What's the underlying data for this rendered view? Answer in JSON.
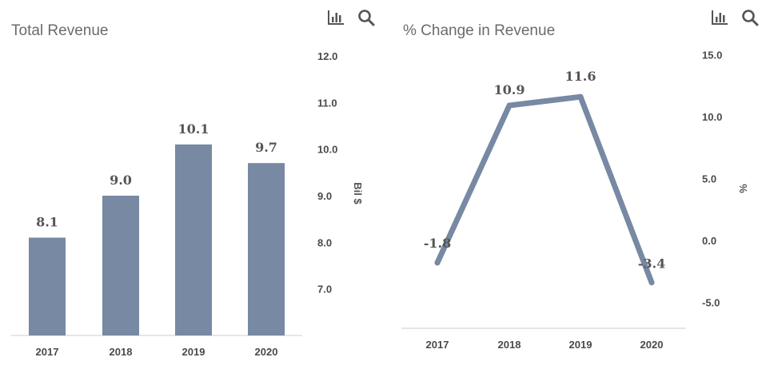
{
  "colors": {
    "series": "#7789a3",
    "axis": "#cccccc",
    "text": "#555555",
    "icon": "#555555"
  },
  "charts": [
    {
      "toolbar": {
        "icons": [
          "bar-chart-icon",
          "search-icon"
        ]
      },
      "chart_data": {
        "type": "bar",
        "title": "Total Revenue",
        "categories": [
          "2017",
          "2018",
          "2019",
          "2020"
        ],
        "values": [
          8.1,
          9.0,
          10.1,
          9.7
        ],
        "data_labels": [
          "8.1",
          "9.0",
          "10.1",
          "9.7"
        ],
        "y_ticks": [
          "12.0",
          "11.0",
          "10.0",
          "9.0",
          "8.0",
          "7.0"
        ],
        "ylim": [
          6.0,
          12.0
        ],
        "yaxis_position": "right",
        "ylabel": "Bil $",
        "grid": false,
        "legend": "none"
      }
    },
    {
      "toolbar": {
        "icons": [
          "bar-chart-icon",
          "search-icon"
        ]
      },
      "chart_data": {
        "type": "line",
        "title": "% Change in Revenue",
        "categories": [
          "2017",
          "2018",
          "2019",
          "2020"
        ],
        "values": [
          -1.8,
          10.9,
          11.6,
          -3.4
        ],
        "data_labels": [
          "-1.8",
          "10.9",
          "11.6",
          "-3.4"
        ],
        "y_ticks": [
          "15.0",
          "10.0",
          "5.0",
          "0.0",
          "-5.0"
        ],
        "ylim": [
          -5.0,
          15.0
        ],
        "yaxis_position": "right",
        "ylabel": "%",
        "grid": false,
        "legend": "none"
      }
    }
  ]
}
